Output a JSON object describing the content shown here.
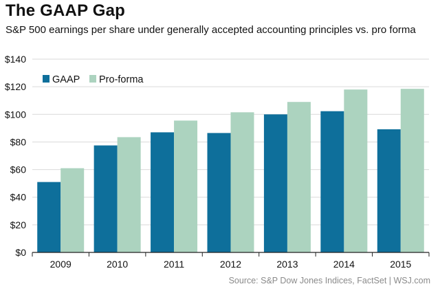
{
  "header": {
    "title": "The GAAP Gap",
    "subtitle": "S&P 500 earnings per share under generally accepted accounting principles vs. pro forma"
  },
  "footer": {
    "source": "Source: S&P Dow Jones Indices, FactSet  |  WSJ.com"
  },
  "colors": {
    "gaap": "#0e6f9b",
    "proforma": "#acd3bf",
    "grid": "#d9d9d9",
    "axis": "#222222"
  },
  "chart_data": {
    "type": "bar",
    "title": "The GAAP Gap",
    "categories": [
      "2009",
      "2010",
      "2011",
      "2012",
      "2013",
      "2014",
      "2015"
    ],
    "series": [
      {
        "name": "GAAP",
        "values": [
          51,
          77.5,
          87,
          86.5,
          100,
          102.3,
          89.2
        ]
      },
      {
        "name": "Pro-forma",
        "values": [
          61,
          83.5,
          95.5,
          101.5,
          109,
          118,
          118.5
        ]
      }
    ],
    "yticks": [
      "$0",
      "$20",
      "$40",
      "$60",
      "$80",
      "$100",
      "$120",
      "$140"
    ],
    "ytick_values": [
      0,
      20,
      40,
      60,
      80,
      100,
      120,
      140
    ],
    "ylim": [
      0,
      140
    ],
    "xlabel": "",
    "ylabel": "",
    "grid": true,
    "legend_position": "top-left"
  }
}
